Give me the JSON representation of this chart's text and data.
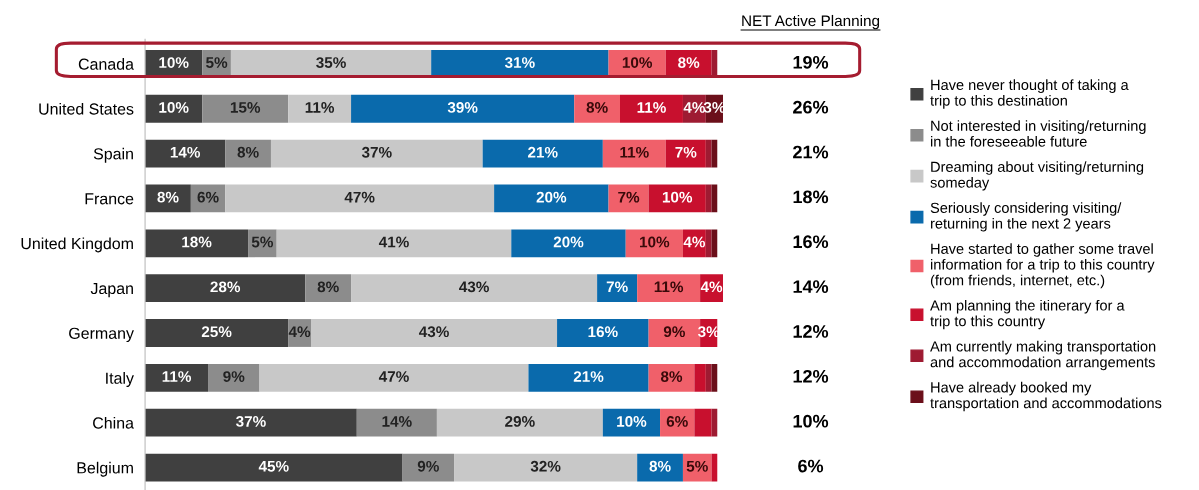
{
  "chart_data": {
    "type": "bar",
    "orientation": "horizontal",
    "stacked": true,
    "categories": [
      "Canada",
      "United States",
      "Spain",
      "France",
      "United Kingdom",
      "Japan",
      "Germany",
      "Italy",
      "China",
      "Belgium"
    ],
    "series": [
      {
        "name": "Have never thought of taking a\ntrip to this destination",
        "color": "#404040",
        "values": [
          10,
          10,
          14,
          8,
          18,
          28,
          25,
          11,
          37,
          45
        ],
        "value_labels": [
          "10%",
          "10%",
          "14%",
          "8%",
          "18%",
          "28%",
          "25%",
          "11%",
          "37%",
          "45%"
        ]
      },
      {
        "name": "Not interested in visiting/returning\nin the foreseeable future",
        "color": "#8c8c8c",
        "values": [
          5,
          15,
          8,
          6,
          5,
          8,
          4,
          9,
          14,
          9
        ],
        "value_labels": [
          "5%",
          "15%",
          "8%",
          "6%",
          "5%",
          "8%",
          "4%",
          "9%",
          "14%",
          "9%"
        ]
      },
      {
        "name": "Dreaming about visiting/returning\nsomeday",
        "color": "#c8c8c8",
        "values": [
          35,
          11,
          37,
          47,
          41,
          43,
          43,
          47,
          29,
          32
        ],
        "value_labels": [
          "35%",
          "11%",
          "37%",
          "47%",
          "41%",
          "43%",
          "43%",
          "47%",
          "29%",
          "32%"
        ]
      },
      {
        "name": "Seriously considering visiting/\nreturning in the next 2 years",
        "color": "#0a6aac",
        "values": [
          31,
          39,
          21,
          20,
          20,
          7,
          16,
          21,
          10,
          8
        ],
        "value_labels": [
          "31%",
          "39%",
          "21%",
          "20%",
          "20%",
          "7%",
          "16%",
          "21%",
          "10%",
          "8%"
        ]
      },
      {
        "name": "Have started to gather some travel\ninformation for a trip to this country\n(from friends, internet, etc.)",
        "color": "#f0606a",
        "values": [
          10,
          8,
          11,
          7,
          10,
          11,
          9,
          8,
          6,
          5
        ],
        "value_labels": [
          "10%",
          "8%",
          "11%",
          "7%",
          "10%",
          "11%",
          "9%",
          "8%",
          "6%",
          "5%"
        ]
      },
      {
        "name": "Am planning the itinerary for a\ntrip to this country",
        "color": "#c8102e",
        "values": [
          8,
          11,
          7,
          10,
          4,
          4,
          3,
          2,
          3,
          1
        ],
        "value_labels": [
          "8%",
          "11%",
          "7%",
          "10%",
          "4%",
          "4%",
          "3%",
          null,
          null,
          null
        ]
      },
      {
        "name": "Am currently making transportation\nand accommodation arrangements",
        "color": "#9e1b32",
        "values": [
          1,
          4,
          1,
          1,
          1,
          0,
          0,
          1,
          1,
          0
        ],
        "value_labels": [
          null,
          "4%",
          null,
          null,
          null,
          null,
          null,
          null,
          null,
          null
        ]
      },
      {
        "name": "Have already booked my\ntransportation and accommodations",
        "color": "#6b0f1a",
        "values": [
          0,
          3,
          1,
          1,
          1,
          0,
          0,
          1,
          0,
          0
        ],
        "value_labels": [
          null,
          "3%",
          null,
          null,
          null,
          null,
          null,
          null,
          null,
          null
        ]
      }
    ],
    "annotations": [
      "NET Active Planning",
      "19%",
      "26%",
      "21%",
      "18%",
      "16%",
      "14%",
      "12%",
      "12%",
      "10%",
      "6%"
    ],
    "legend": "right",
    "grid": false
  }
}
